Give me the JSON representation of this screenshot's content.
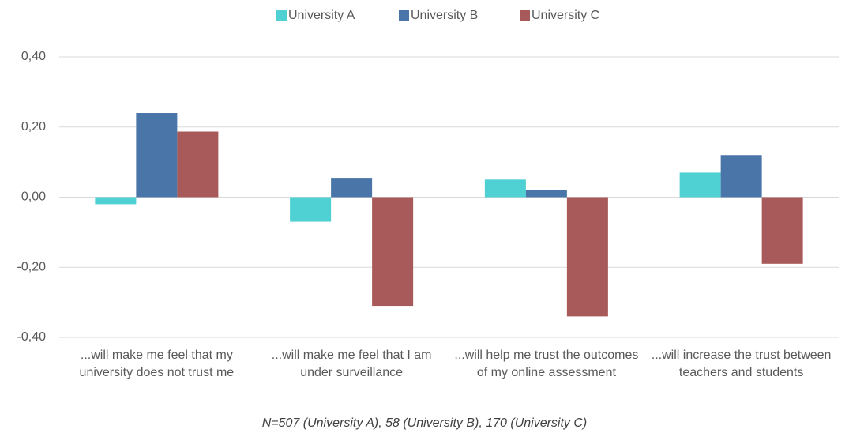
{
  "chart_data": {
    "type": "bar",
    "categories": [
      "...will make me feel that my university does not trust me",
      "...will make me feel that I am under surveillance",
      "...will help me trust the outcomes of my online assessment",
      "...will increase the trust between teachers and students"
    ],
    "series": [
      {
        "name": "University A",
        "color": "#4fd0d3",
        "values": [
          -0.02,
          -0.07,
          0.05,
          0.07
        ]
      },
      {
        "name": "University B",
        "color": "#4a75a8",
        "values": [
          0.24,
          0.055,
          0.02,
          0.12
        ]
      },
      {
        "name": "University C",
        "color": "#a85a5a",
        "values": [
          0.187,
          -0.31,
          -0.34,
          -0.19
        ]
      }
    ],
    "ylim": [
      -0.4,
      0.4
    ],
    "yticks": [
      {
        "value": 0.4,
        "label": "0,40"
      },
      {
        "value": 0.2,
        "label": "0,20"
      },
      {
        "value": 0,
        "label": "0,00"
      },
      {
        "value": -0.2,
        "label": "-0,20"
      },
      {
        "value": -0.4,
        "label": "-0,40"
      }
    ],
    "grid": true,
    "legend": "top",
    "note": "N=507 (University A), 58 (University B), 170 (University C)"
  }
}
